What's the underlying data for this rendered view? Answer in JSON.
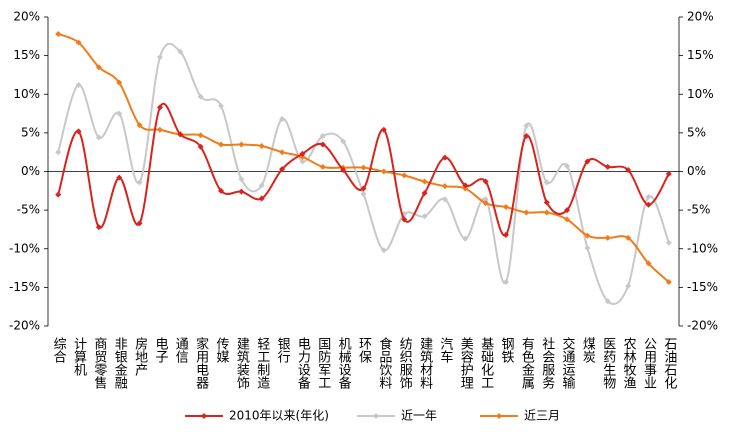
{
  "chart_data": {
    "type": "line",
    "categories": [
      "综合",
      "计算机",
      "商贸零售",
      "非银金融",
      "房地产",
      "电子",
      "通信",
      "家用电器",
      "传媒",
      "建筑装饰",
      "轻工制造",
      "银行",
      "电力设备",
      "国防军工",
      "机械设备",
      "环保",
      "食品饮料",
      "纺织服饰",
      "建筑材料",
      "汽车",
      "美容护理",
      "基础化工",
      "钢铁",
      "有色金属",
      "社会服务",
      "交通运输",
      "煤炭",
      "医药生物",
      "农林牧渔",
      "公用事业",
      "石油石化"
    ],
    "series": [
      {
        "name": "2010年以来(年化)",
        "color": "#d9231d",
        "values": [
          -3,
          5.2,
          -7.2,
          -0.8,
          -6.7,
          8.3,
          4.8,
          3.2,
          -2.5,
          -2.6,
          -3.5,
          0.3,
          2.3,
          3.5,
          0.2,
          -2.2,
          5.4,
          -6.2,
          -2.8,
          1.8,
          -1.8,
          -1.3,
          -8.2,
          4.6,
          -4,
          -5,
          1.3,
          0.6,
          0.2,
          -4.3,
          -0.3
        ]
      },
      {
        "name": "近一年",
        "color": "#c8c8c8",
        "values": [
          2.5,
          11.2,
          4.4,
          7.5,
          -1.4,
          14.8,
          15.5,
          9.7,
          8.5,
          -1,
          -1.8,
          6.8,
          1.3,
          4.6,
          3.9,
          -2.9,
          -10.2,
          -5.5,
          -5.8,
          -3.6,
          -8.7,
          -3.6,
          -14.3,
          5.9,
          -1.4,
          0.7,
          -9.9,
          -16.8,
          -14.8,
          -3.3,
          -9.2
        ]
      },
      {
        "name": "近三月",
        "color": "#f07c1a",
        "values": [
          17.8,
          16.7,
          13.5,
          11.5,
          6,
          5.4,
          4.8,
          4.7,
          3.5,
          3.5,
          3.3,
          2.5,
          1.9,
          0.6,
          0.5,
          0.5,
          0,
          -0.5,
          -1.3,
          -1.9,
          -2.2,
          -4.1,
          -4.6,
          -5.3,
          -5.3,
          -6.2,
          -8.3,
          -8.6,
          -8.6,
          -11.9,
          -14.3
        ]
      }
    ],
    "ylim": [
      -20,
      20
    ],
    "yticks": [
      {
        "value": -20,
        "label": "-20%"
      },
      {
        "value": -15,
        "label": "-15%"
      },
      {
        "value": -10,
        "label": "-10%"
      },
      {
        "value": -5,
        "label": "-5%"
      },
      {
        "value": 0,
        "label": "0%"
      },
      {
        "value": 5,
        "label": "5%"
      },
      {
        "value": 10,
        "label": "10%"
      },
      {
        "value": 15,
        "label": "15%"
      },
      {
        "value": 20,
        "label": "20%"
      }
    ],
    "y2lim": [
      -20,
      20
    ],
    "y2ticks": [
      {
        "value": -20,
        "label": "-20%"
      },
      {
        "value": -15,
        "label": "-15%"
      },
      {
        "value": -10,
        "label": "-10%"
      },
      {
        "value": -5,
        "label": "-5%"
      },
      {
        "value": 0,
        "label": "0%"
      },
      {
        "value": 5,
        "label": "5%"
      },
      {
        "value": 10,
        "label": "10%"
      },
      {
        "value": 15,
        "label": "15%"
      },
      {
        "value": 20,
        "label": "20%"
      }
    ],
    "grid": false,
    "legend": "bottom"
  }
}
